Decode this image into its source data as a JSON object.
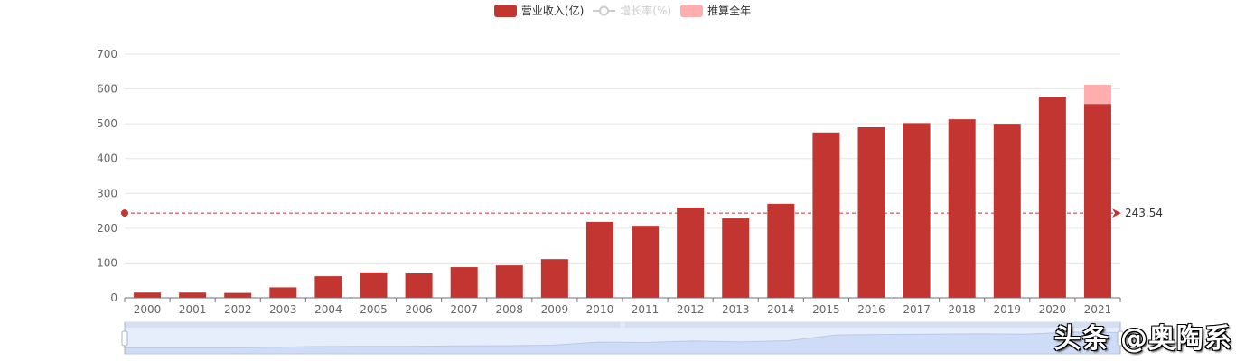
{
  "chart_data": {
    "type": "bar",
    "title": "",
    "legend": [
      {
        "name": "营业收入(亿)",
        "color": "#c23531",
        "type": "bar",
        "enabled": true
      },
      {
        "name": "增长率(%)",
        "color": "#cccccc",
        "type": "line",
        "enabled": false
      },
      {
        "name": "推算全年",
        "color": "#ffadad",
        "type": "bar",
        "enabled": true
      }
    ],
    "legend_position": "top-center",
    "categories": [
      "2000",
      "2001",
      "2002",
      "2003",
      "2004",
      "2005",
      "2006",
      "2007",
      "2008",
      "2009",
      "2010",
      "2011",
      "2012",
      "2013",
      "2014",
      "2015",
      "2016",
      "2017",
      "2018",
      "2019",
      "2020",
      "2021"
    ],
    "series": [
      {
        "name": "营业收入(亿)",
        "stack": "rev",
        "color": "#c23531",
        "values": [
          15,
          15,
          14,
          30,
          62,
          73,
          70,
          88,
          93,
          111,
          218,
          207,
          259,
          228,
          270,
          475,
          490,
          502,
          513,
          500,
          578,
          557
        ]
      },
      {
        "name": "推算全年",
        "stack": "rev",
        "color": "#ffadad",
        "values": [
          0,
          0,
          0,
          0,
          0,
          0,
          0,
          0,
          0,
          0,
          0,
          0,
          0,
          0,
          0,
          0,
          0,
          0,
          0,
          0,
          0,
          55
        ]
      }
    ],
    "mark_line": {
      "type": "average",
      "value": 243.54,
      "label": "243.54",
      "color": "#c23531"
    },
    "yticks": [
      0,
      100,
      200,
      300,
      400,
      500,
      600,
      700
    ],
    "ylim": [
      0,
      700
    ],
    "xlabel": "",
    "ylabel": "",
    "grid": true
  },
  "datazoom": {
    "start_percent": 0,
    "end_percent": 100
  },
  "watermark": "头条 @奥陶系"
}
